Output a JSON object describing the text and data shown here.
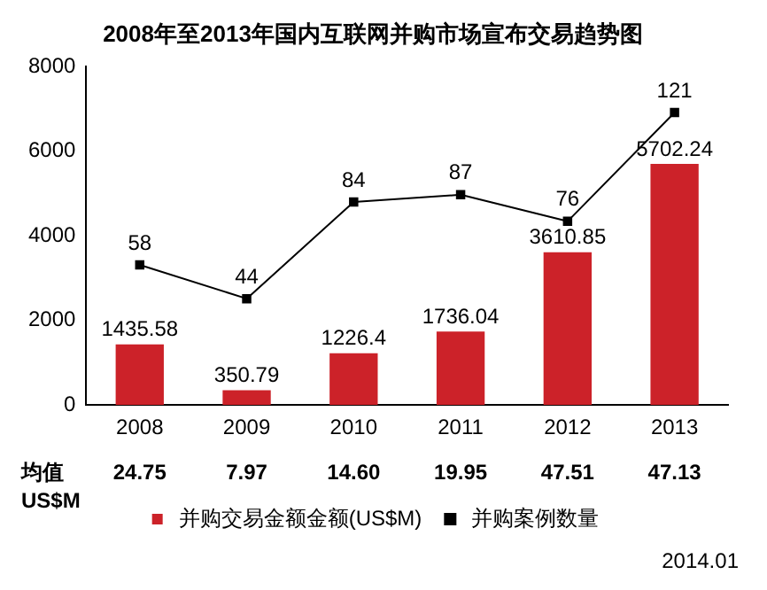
{
  "chart_data": {
    "type": "bar",
    "title": "2008年至2013年国内互联网并购市场宣布交易趋势图",
    "categories": [
      "2008",
      "2009",
      "2010",
      "2011",
      "2012",
      "2013"
    ],
    "series": [
      {
        "name": "并购交易金额金额(US$M)",
        "type": "bar",
        "color": "#cc2229",
        "values": [
          1435.58,
          350.79,
          1226.4,
          1736.04,
          3610.85,
          5702.24
        ]
      },
      {
        "name": "并购案例数量",
        "type": "line",
        "axis": "y2",
        "color": "#000000",
        "marker": "square",
        "values": [
          58,
          44,
          84,
          87,
          76,
          121
        ]
      }
    ],
    "ylim": [
      0,
      8000
    ],
    "yticks": [
      0,
      2000,
      4000,
      6000,
      8000
    ],
    "grid": false,
    "data_labels": true,
    "legend": "bottom",
    "annotations": [
      "均值",
      "US$M",
      "24.75",
      "7.97",
      "14.60",
      "19.95",
      "47.51",
      "47.13",
      "2014.01"
    ]
  }
}
